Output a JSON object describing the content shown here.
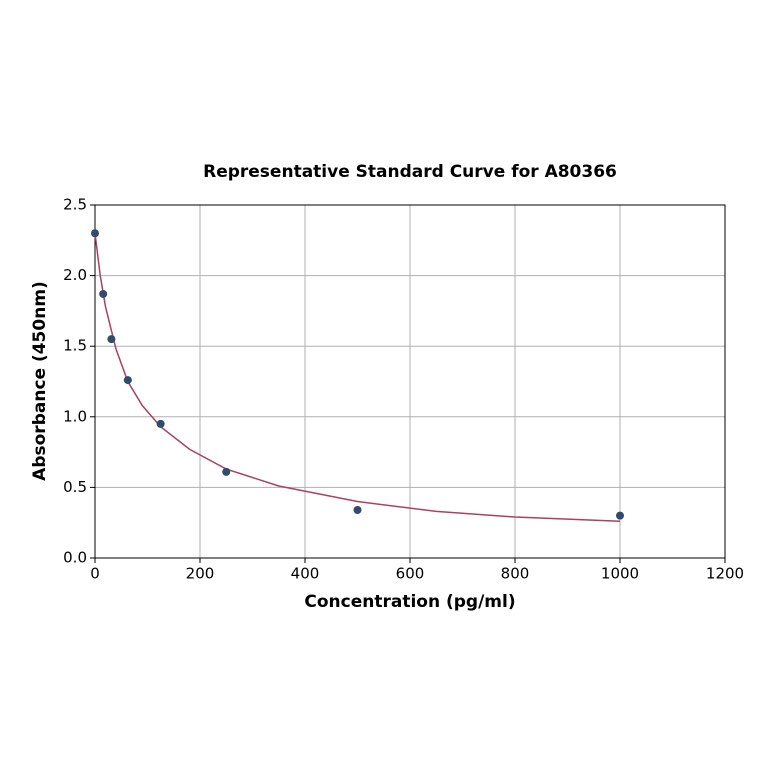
{
  "chart_data": {
    "type": "scatter",
    "title": "Representative Standard Curve for A80366",
    "x_label": "Concentration (pg/ml)",
    "y_label": "Absorbance (450nm)",
    "xlim": [
      0,
      1200
    ],
    "ylim": [
      0,
      2.5
    ],
    "xticks": [
      0,
      200,
      400,
      600,
      800,
      1000,
      1200
    ],
    "yticks": [
      {
        "value": 0,
        "label": "0.0"
      },
      0.5,
      {
        "value": 1,
        "label": "1.0"
      },
      1.5,
      {
        "value": 2,
        "label": "2.0"
      },
      2.5
    ],
    "grid": true,
    "series": [
      {
        "type": "scatter",
        "color": "#2f4b6e",
        "x": [
          0,
          15.6,
          31.25,
          62.5,
          125,
          250,
          500,
          1000
        ],
        "values": [
          2.3,
          1.87,
          1.55,
          1.26,
          0.95,
          0.61,
          0.34,
          0.3
        ]
      },
      {
        "type": "line",
        "color": "#a8435f",
        "x": [
          0,
          10,
          20,
          40,
          62.5,
          90,
          125,
          180,
          250,
          350,
          500,
          650,
          800,
          1000
        ],
        "values": [
          2.3,
          2.0,
          1.78,
          1.48,
          1.25,
          1.08,
          0.93,
          0.77,
          0.63,
          0.51,
          0.4,
          0.33,
          0.29,
          0.26
        ]
      }
    ]
  }
}
